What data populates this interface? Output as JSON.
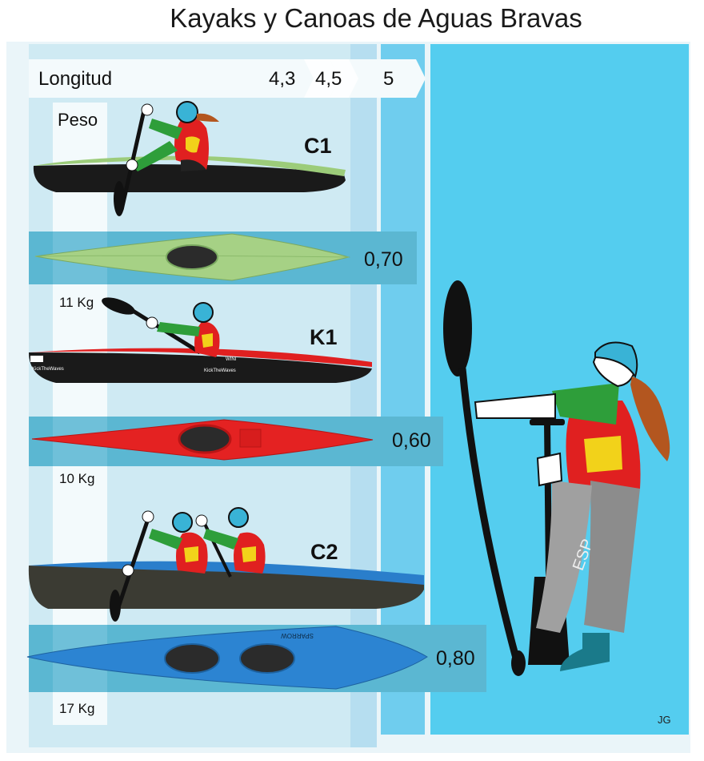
{
  "title": "Kayaks y Canoas de Aguas Bravas",
  "axis": {
    "length_label": "Longitud",
    "weight_label": "Peso"
  },
  "length_marks": [
    "4,3",
    "4,5",
    "5"
  ],
  "boats": [
    {
      "name": "C1",
      "width": "0,70",
      "weight": "11 Kg",
      "color": "#8fc46c"
    },
    {
      "name": "K1",
      "width": "0,60",
      "weight": "10 Kg",
      "color": "#e02020"
    },
    {
      "name": "C2",
      "width": "0,80",
      "weight": "17 Kg",
      "color": "#2a7ecb"
    }
  ],
  "boat_texts": {
    "k1_brand": "KickTheWaves",
    "k1_model": "WINI",
    "k1_top": "KickTheWaves",
    "c2_model": "SPARROW"
  },
  "athlete": {
    "bib": "ESP"
  },
  "signature": "JG"
}
